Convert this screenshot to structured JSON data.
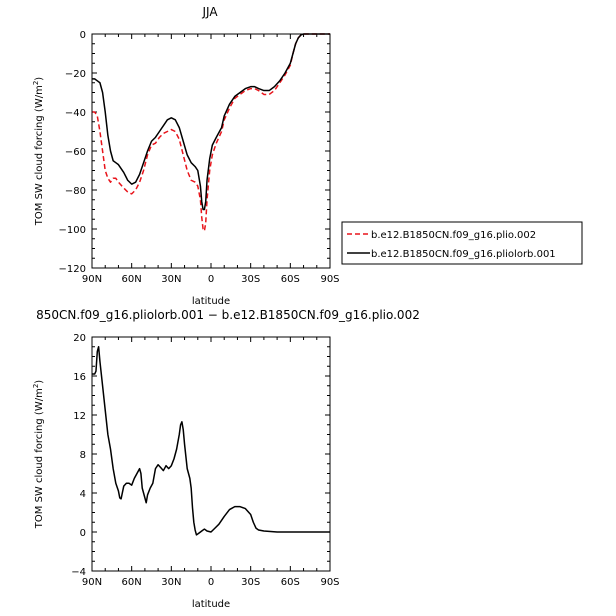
{
  "chart_data": [
    {
      "type": "line",
      "title": "JJA",
      "xlabel": "latitude",
      "ylabel": "TOM SW cloud forcing (W/m²)",
      "ylabel_main": "TOM SW cloud forcing (W/m",
      "ylabel_sup": "2",
      "ylabel_close": ")",
      "xlim": [
        90,
        -90
      ],
      "ylim": [
        -120,
        0
      ],
      "xticks": [
        {
          "v": 90,
          "label": "90N"
        },
        {
          "v": 60,
          "label": "60N"
        },
        {
          "v": 30,
          "label": "30N"
        },
        {
          "v": 0,
          "label": "0"
        },
        {
          "v": -30,
          "label": "30S"
        },
        {
          "v": -60,
          "label": "60S"
        },
        {
          "v": -90,
          "label": "90S"
        }
      ],
      "yticks": [
        {
          "v": 0,
          "label": "0"
        },
        {
          "v": -20,
          "label": "−20"
        },
        {
          "v": -40,
          "label": "−40"
        },
        {
          "v": -60,
          "label": "−60"
        },
        {
          "v": -80,
          "label": "−80"
        },
        {
          "v": -100,
          "label": "−100"
        },
        {
          "v": -120,
          "label": "−120"
        }
      ],
      "legend_position": "right",
      "series": [
        {
          "name": "b.e12.B1850CN.f09_g16.plio.002",
          "color": "#e8141b",
          "dash": "dashed",
          "points": [
            [
              90,
              -40
            ],
            [
              88,
              -40
            ],
            [
              86,
              -42
            ],
            [
              84,
              -50
            ],
            [
              82,
              -60
            ],
            [
              80,
              -70
            ],
            [
              78,
              -74
            ],
            [
              76,
              -76
            ],
            [
              74,
              -74
            ],
            [
              72,
              -74
            ],
            [
              70,
              -76
            ],
            [
              66,
              -79
            ],
            [
              63,
              -81
            ],
            [
              60,
              -82
            ],
            [
              57,
              -80
            ],
            [
              54,
              -76
            ],
            [
              51,
              -70
            ],
            [
              48,
              -62
            ],
            [
              45,
              -57
            ],
            [
              42,
              -56
            ],
            [
              39,
              -53
            ],
            [
              36,
              -51
            ],
            [
              33,
              -50
            ],
            [
              30,
              -49
            ],
            [
              27,
              -50
            ],
            [
              24,
              -54
            ],
            [
              21,
              -62
            ],
            [
              18,
              -70
            ],
            [
              15,
              -75
            ],
            [
              12,
              -76
            ],
            [
              10,
              -78
            ],
            [
              8,
              -85
            ],
            [
              7,
              -94
            ],
            [
              6,
              -100
            ],
            [
              5,
              -101
            ],
            [
              4,
              -97
            ],
            [
              3,
              -85
            ],
            [
              1,
              -70
            ],
            [
              -1,
              -62
            ],
            [
              -4,
              -56
            ],
            [
              -8,
              -50
            ],
            [
              -10,
              -44
            ],
            [
              -14,
              -38
            ],
            [
              -18,
              -33
            ],
            [
              -22,
              -31
            ],
            [
              -26,
              -29
            ],
            [
              -30,
              -28
            ],
            [
              -33,
              -28
            ],
            [
              -36,
              -29
            ],
            [
              -40,
              -31
            ],
            [
              -44,
              -31
            ],
            [
              -48,
              -29
            ],
            [
              -52,
              -25
            ],
            [
              -56,
              -21
            ],
            [
              -60,
              -16
            ],
            [
              -62,
              -10
            ],
            [
              -64,
              -5
            ],
            [
              -66,
              -2
            ],
            [
              -68,
              -0.5
            ],
            [
              -70,
              0
            ],
            [
              -80,
              0
            ],
            [
              -90,
              0
            ]
          ]
        },
        {
          "name": "b.e12.B1850CN.f09_g16.pliolorb.001",
          "color": "#000000",
          "dash": "solid",
          "points": [
            [
              90,
              -23
            ],
            [
              88,
              -23
            ],
            [
              86,
              -24
            ],
            [
              84,
              -25
            ],
            [
              82,
              -30
            ],
            [
              80,
              -40
            ],
            [
              78,
              -52
            ],
            [
              76,
              -60
            ],
            [
              74,
              -65
            ],
            [
              72,
              -66
            ],
            [
              70,
              -67
            ],
            [
              66,
              -71
            ],
            [
              63,
              -75
            ],
            [
              60,
              -77
            ],
            [
              57,
              -76
            ],
            [
              54,
              -72
            ],
            [
              51,
              -66
            ],
            [
              48,
              -60
            ],
            [
              45,
              -55
            ],
            [
              42,
              -53
            ],
            [
              39,
              -50
            ],
            [
              36,
              -47
            ],
            [
              33,
              -44
            ],
            [
              30,
              -43
            ],
            [
              27,
              -44
            ],
            [
              24,
              -48
            ],
            [
              21,
              -55
            ],
            [
              18,
              -62
            ],
            [
              15,
              -66
            ],
            [
              12,
              -68
            ],
            [
              10,
              -70
            ],
            [
              8,
              -78
            ],
            [
              7,
              -86
            ],
            [
              6,
              -90
            ],
            [
              5,
              -90
            ],
            [
              4,
              -86
            ],
            [
              3,
              -75
            ],
            [
              1,
              -64
            ],
            [
              -1,
              -57
            ],
            [
              -4,
              -53
            ],
            [
              -8,
              -48
            ],
            [
              -10,
              -42
            ],
            [
              -14,
              -36
            ],
            [
              -18,
              -32
            ],
            [
              -22,
              -30
            ],
            [
              -26,
              -28
            ],
            [
              -30,
              -27
            ],
            [
              -33,
              -27
            ],
            [
              -36,
              -28
            ],
            [
              -40,
              -29
            ],
            [
              -44,
              -29
            ],
            [
              -48,
              -27
            ],
            [
              -52,
              -24
            ],
            [
              -56,
              -20
            ],
            [
              -60,
              -15
            ],
            [
              -62,
              -10
            ],
            [
              -64,
              -5
            ],
            [
              -66,
              -2
            ],
            [
              -68,
              -0.5
            ],
            [
              -70,
              0
            ],
            [
              -80,
              0
            ],
            [
              -90,
              0
            ]
          ]
        }
      ]
    },
    {
      "type": "line",
      "title": "850CN.f09_g16.pliolorb.001 − b.e12.B1850CN.f09_g16.plio.002",
      "xlabel": "latitude",
      "ylabel": "TOM SW cloud forcing (W/m²)",
      "ylabel_main": "TOM SW cloud forcing (W/m",
      "ylabel_sup": "2",
      "ylabel_close": ")",
      "xlim": [
        90,
        -90
      ],
      "ylim": [
        -4,
        20
      ],
      "xticks": [
        {
          "v": 90,
          "label": "90N"
        },
        {
          "v": 60,
          "label": "60N"
        },
        {
          "v": 30,
          "label": "30N"
        },
        {
          "v": 0,
          "label": "0"
        },
        {
          "v": -30,
          "label": "30S"
        },
        {
          "v": -60,
          "label": "60S"
        },
        {
          "v": -90,
          "label": "90S"
        }
      ],
      "yticks": [
        {
          "v": 20,
          "label": "20"
        },
        {
          "v": 16,
          "label": "16"
        },
        {
          "v": 12,
          "label": "12"
        },
        {
          "v": 8,
          "label": "8"
        },
        {
          "v": 4,
          "label": "4"
        },
        {
          "v": 0,
          "label": "0"
        },
        {
          "v": -4,
          "label": "−4"
        }
      ],
      "series": [
        {
          "color": "#000000",
          "dash": "solid",
          "points": [
            [
              90,
              16.2
            ],
            [
              88,
              16.2
            ],
            [
              87,
              16.5
            ],
            [
              86,
              18.5
            ],
            [
              85,
              19
            ],
            [
              84,
              17.5
            ],
            [
              82,
              15
            ],
            [
              80,
              12.5
            ],
            [
              78,
              10
            ],
            [
              76,
              8.5
            ],
            [
              74,
              6.5
            ],
            [
              72,
              5
            ],
            [
              70,
              4.2
            ],
            [
              69,
              3.5
            ],
            [
              68,
              3.4
            ],
            [
              66,
              4.7
            ],
            [
              64,
              5
            ],
            [
              62,
              5
            ],
            [
              60,
              4.8
            ],
            [
              58,
              5.5
            ],
            [
              56,
              6
            ],
            [
              54,
              6.5
            ],
            [
              53,
              6
            ],
            [
              52,
              4.5
            ],
            [
              50,
              3.5
            ],
            [
              49,
              3
            ],
            [
              48,
              3.8
            ],
            [
              46,
              4.5
            ],
            [
              44,
              5
            ],
            [
              42,
              6.5
            ],
            [
              40,
              6.9
            ],
            [
              38,
              6.6
            ],
            [
              36,
              6.3
            ],
            [
              34,
              6.8
            ],
            [
              32,
              6.5
            ],
            [
              30,
              6.8
            ],
            [
              28,
              7.5
            ],
            [
              26,
              8.5
            ],
            [
              24,
              10
            ],
            [
              23,
              11
            ],
            [
              22,
              11.3
            ],
            [
              21,
              10.5
            ],
            [
              20,
              9
            ],
            [
              18,
              6.5
            ],
            [
              16,
              5.5
            ],
            [
              15,
              4.5
            ],
            [
              14,
              2.5
            ],
            [
              13,
              1
            ],
            [
              12,
              0.2
            ],
            [
              11,
              -0.3
            ],
            [
              9,
              -0.1
            ],
            [
              7,
              0.1
            ],
            [
              5,
              0.3
            ],
            [
              3,
              0.1
            ],
            [
              0,
              0
            ],
            [
              -3,
              0.4
            ],
            [
              -6,
              0.8
            ],
            [
              -10,
              1.6
            ],
            [
              -14,
              2.3
            ],
            [
              -18,
              2.6
            ],
            [
              -22,
              2.6
            ],
            [
              -26,
              2.4
            ],
            [
              -30,
              1.8
            ],
            [
              -32,
              1
            ],
            [
              -34,
              0.4
            ],
            [
              -36,
              0.2
            ],
            [
              -40,
              0.1
            ],
            [
              -45,
              0.05
            ],
            [
              -50,
              0
            ],
            [
              -60,
              0
            ],
            [
              -90,
              0
            ]
          ]
        }
      ]
    }
  ]
}
